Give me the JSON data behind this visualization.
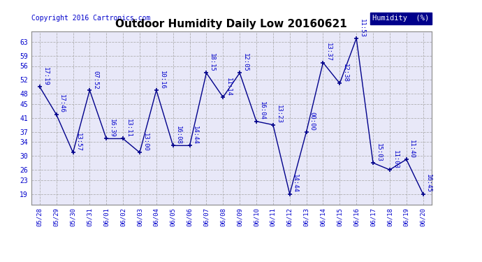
{
  "title": "Outdoor Humidity Daily Low 20160621",
  "copyright": "Copyright 2016 Cartronics.com",
  "legend_label": "Humidity  (%)",
  "x_labels": [
    "05/28",
    "05/29",
    "05/30",
    "05/31",
    "06/01",
    "06/02",
    "06/03",
    "06/04",
    "06/05",
    "06/06",
    "06/07",
    "06/08",
    "06/09",
    "06/10",
    "06/11",
    "06/12",
    "06/13",
    "06/14",
    "06/15",
    "06/16",
    "06/17",
    "06/18",
    "06/19",
    "06/20"
  ],
  "y_values": [
    50,
    42,
    31,
    49,
    35,
    35,
    31,
    49,
    33,
    33,
    54,
    47,
    54,
    40,
    39,
    19,
    37,
    57,
    51,
    64,
    28,
    26,
    29,
    19
  ],
  "time_labels": [
    "17:19",
    "17:46",
    "13:57",
    "07:52",
    "16:39",
    "13:11",
    "13:00",
    "10:16",
    "16:08",
    "14:44",
    "18:15",
    "11:14",
    "12:05",
    "16:04",
    "13:23",
    "14:44",
    "00:00",
    "13:37",
    "12:38",
    "11:53",
    "15:03",
    "11:03",
    "11:40",
    "16:45"
  ],
  "line_color": "#00008B",
  "marker_color": "#00008B",
  "bg_color": "#ffffff",
  "plot_bg_color": "#e8e8f8",
  "grid_color": "#aaaaaa",
  "text_color": "#0000cc",
  "title_color": "#000000",
  "legend_bg": "#00008B",
  "legend_text_color": "#ffffff",
  "ylim": [
    16,
    66
  ],
  "yticks": [
    19,
    23,
    26,
    30,
    34,
    37,
    41,
    45,
    48,
    52,
    56,
    59,
    63
  ],
  "label_fontsize": 6.5,
  "title_fontsize": 11
}
